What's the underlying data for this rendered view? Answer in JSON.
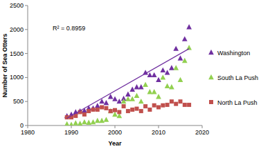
{
  "chart_data": {
    "type": "scatter",
    "x_label": "Year",
    "y_label": "Number of Sea Otters",
    "annotations": [
      {
        "text": "R² = 0.8959"
      }
    ],
    "xlim": [
      1980,
      2020
    ],
    "xticks": [
      1980,
      1990,
      2000,
      2010,
      2020
    ],
    "ylim": [
      0,
      2500
    ],
    "yticks": [
      0,
      500,
      1000,
      1500,
      2000,
      2500
    ],
    "grid": false,
    "legend": "right",
    "x": [
      1989,
      1990,
      1991,
      1992,
      1993,
      1994,
      1995,
      1996,
      1997,
      1998,
      1999,
      2000,
      2001,
      2002,
      2003,
      2004,
      2005,
      2006,
      2007,
      2008,
      2009,
      2010,
      2011,
      2012,
      2013,
      2014,
      2015,
      2016,
      2017
    ],
    "series": [
      {
        "name": "Washington",
        "color": "#7030a0",
        "marker": "triangle",
        "values": [
          200,
          230,
          280,
          300,
          310,
          360,
          360,
          410,
          500,
          470,
          600,
          550,
          500,
          560,
          650,
          750,
          800,
          800,
          1100,
          1050,
          1050,
          950,
          1150,
          1100,
          1200,
          1600,
          1400,
          1800,
          2050
        ]
      },
      {
        "name": "South La Push",
        "color": "#92d050",
        "marker": "triangle",
        "values": [
          30,
          20,
          50,
          40,
          70,
          60,
          70,
          100,
          100,
          120,
          300,
          230,
          200,
          500,
          550,
          550,
          620,
          500,
          850,
          700,
          700,
          600,
          1000,
          820,
          800,
          1200,
          950,
          1350,
          1620
        ]
      },
      {
        "name": "North La Push",
        "color": "#c0504d",
        "marker": "square",
        "values": [
          170,
          170,
          200,
          280,
          230,
          300,
          330,
          330,
          380,
          360,
          300,
          320,
          280,
          400,
          300,
          330,
          350,
          300,
          400,
          330,
          420,
          380,
          420,
          430,
          500,
          450,
          500,
          430,
          430
        ]
      },
      {
        "type": "line",
        "color": "#7030a0",
        "line_style": "solid",
        "x": [
          1989,
          2017
        ],
        "values": [
          150,
          1600
        ]
      }
    ]
  }
}
